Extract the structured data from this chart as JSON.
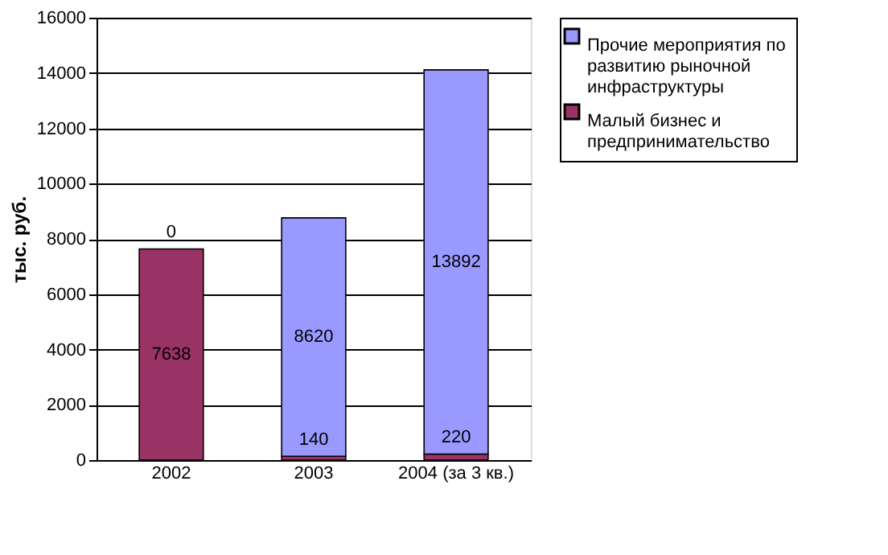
{
  "chart_data": {
    "type": "bar",
    "stacked": true,
    "ylabel": "тыс. руб.",
    "categories": [
      "2002",
      "2003",
      "2004 (за 3 кв.)"
    ],
    "series": [
      {
        "name": "Малый бизнес и предпринимательство",
        "color": "#993366",
        "values": [
          7638,
          140,
          220
        ]
      },
      {
        "name": "Прочие мероприятия по развитию рыночной инфраструктуры",
        "color": "#9999ff",
        "values": [
          0,
          8620,
          13892
        ]
      }
    ],
    "ylim": [
      0,
      16000
    ],
    "yticks": [
      0,
      2000,
      4000,
      6000,
      8000,
      10000,
      12000,
      14000,
      16000
    ],
    "grid": "y",
    "legend": "right",
    "data_labels": true
  }
}
